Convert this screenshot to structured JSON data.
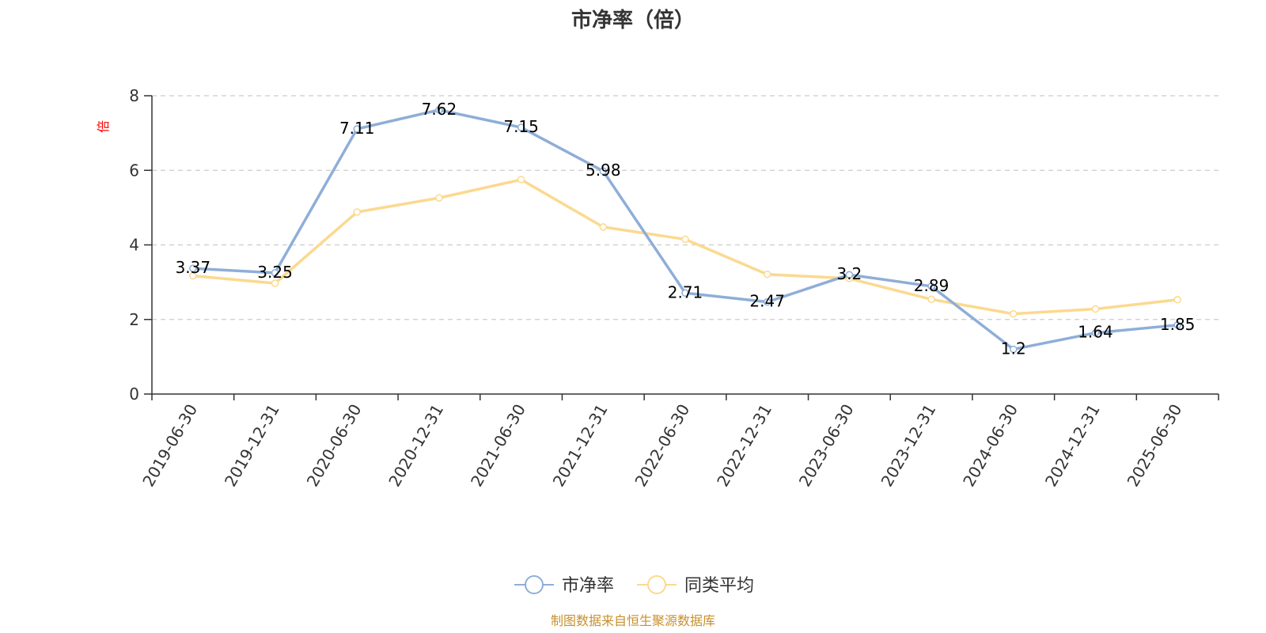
{
  "chart_data": {
    "type": "line",
    "title": "市净率（倍）",
    "ylabel": "倍",
    "ylim": [
      0,
      8
    ],
    "yticks": [
      0,
      2,
      4,
      6,
      8
    ],
    "grid": true,
    "legend_position": "bottom",
    "categories": [
      "2019-06-30",
      "2019-12-31",
      "2020-06-30",
      "2020-12-31",
      "2021-06-30",
      "2021-12-31",
      "2022-06-30",
      "2022-12-31",
      "2023-06-30",
      "2023-12-31",
      "2024-06-30",
      "2024-12-31",
      "2025-06-30"
    ],
    "series": [
      {
        "name": "市净率",
        "color": "#8eaed8",
        "values": [
          3.37,
          3.25,
          7.11,
          7.62,
          7.15,
          5.98,
          2.71,
          2.47,
          3.2,
          2.89,
          1.2,
          1.64,
          1.85
        ],
        "labels": [
          "3.37",
          "3.25",
          "7.11",
          "7.62",
          "7.15",
          "5.98",
          "2.71",
          "2.47",
          "3.2",
          "2.89",
          "1.2",
          "1.64",
          "1.85"
        ]
      },
      {
        "name": "同类平均",
        "color": "#fbd98f",
        "values": [
          3.17,
          2.97,
          4.88,
          5.26,
          5.75,
          4.48,
          4.15,
          3.21,
          3.1,
          2.54,
          2.15,
          2.28,
          2.53
        ]
      }
    ]
  },
  "footer": {
    "source": "制图数据来自恒生聚源数据库",
    "source_color": "#c8902c"
  }
}
